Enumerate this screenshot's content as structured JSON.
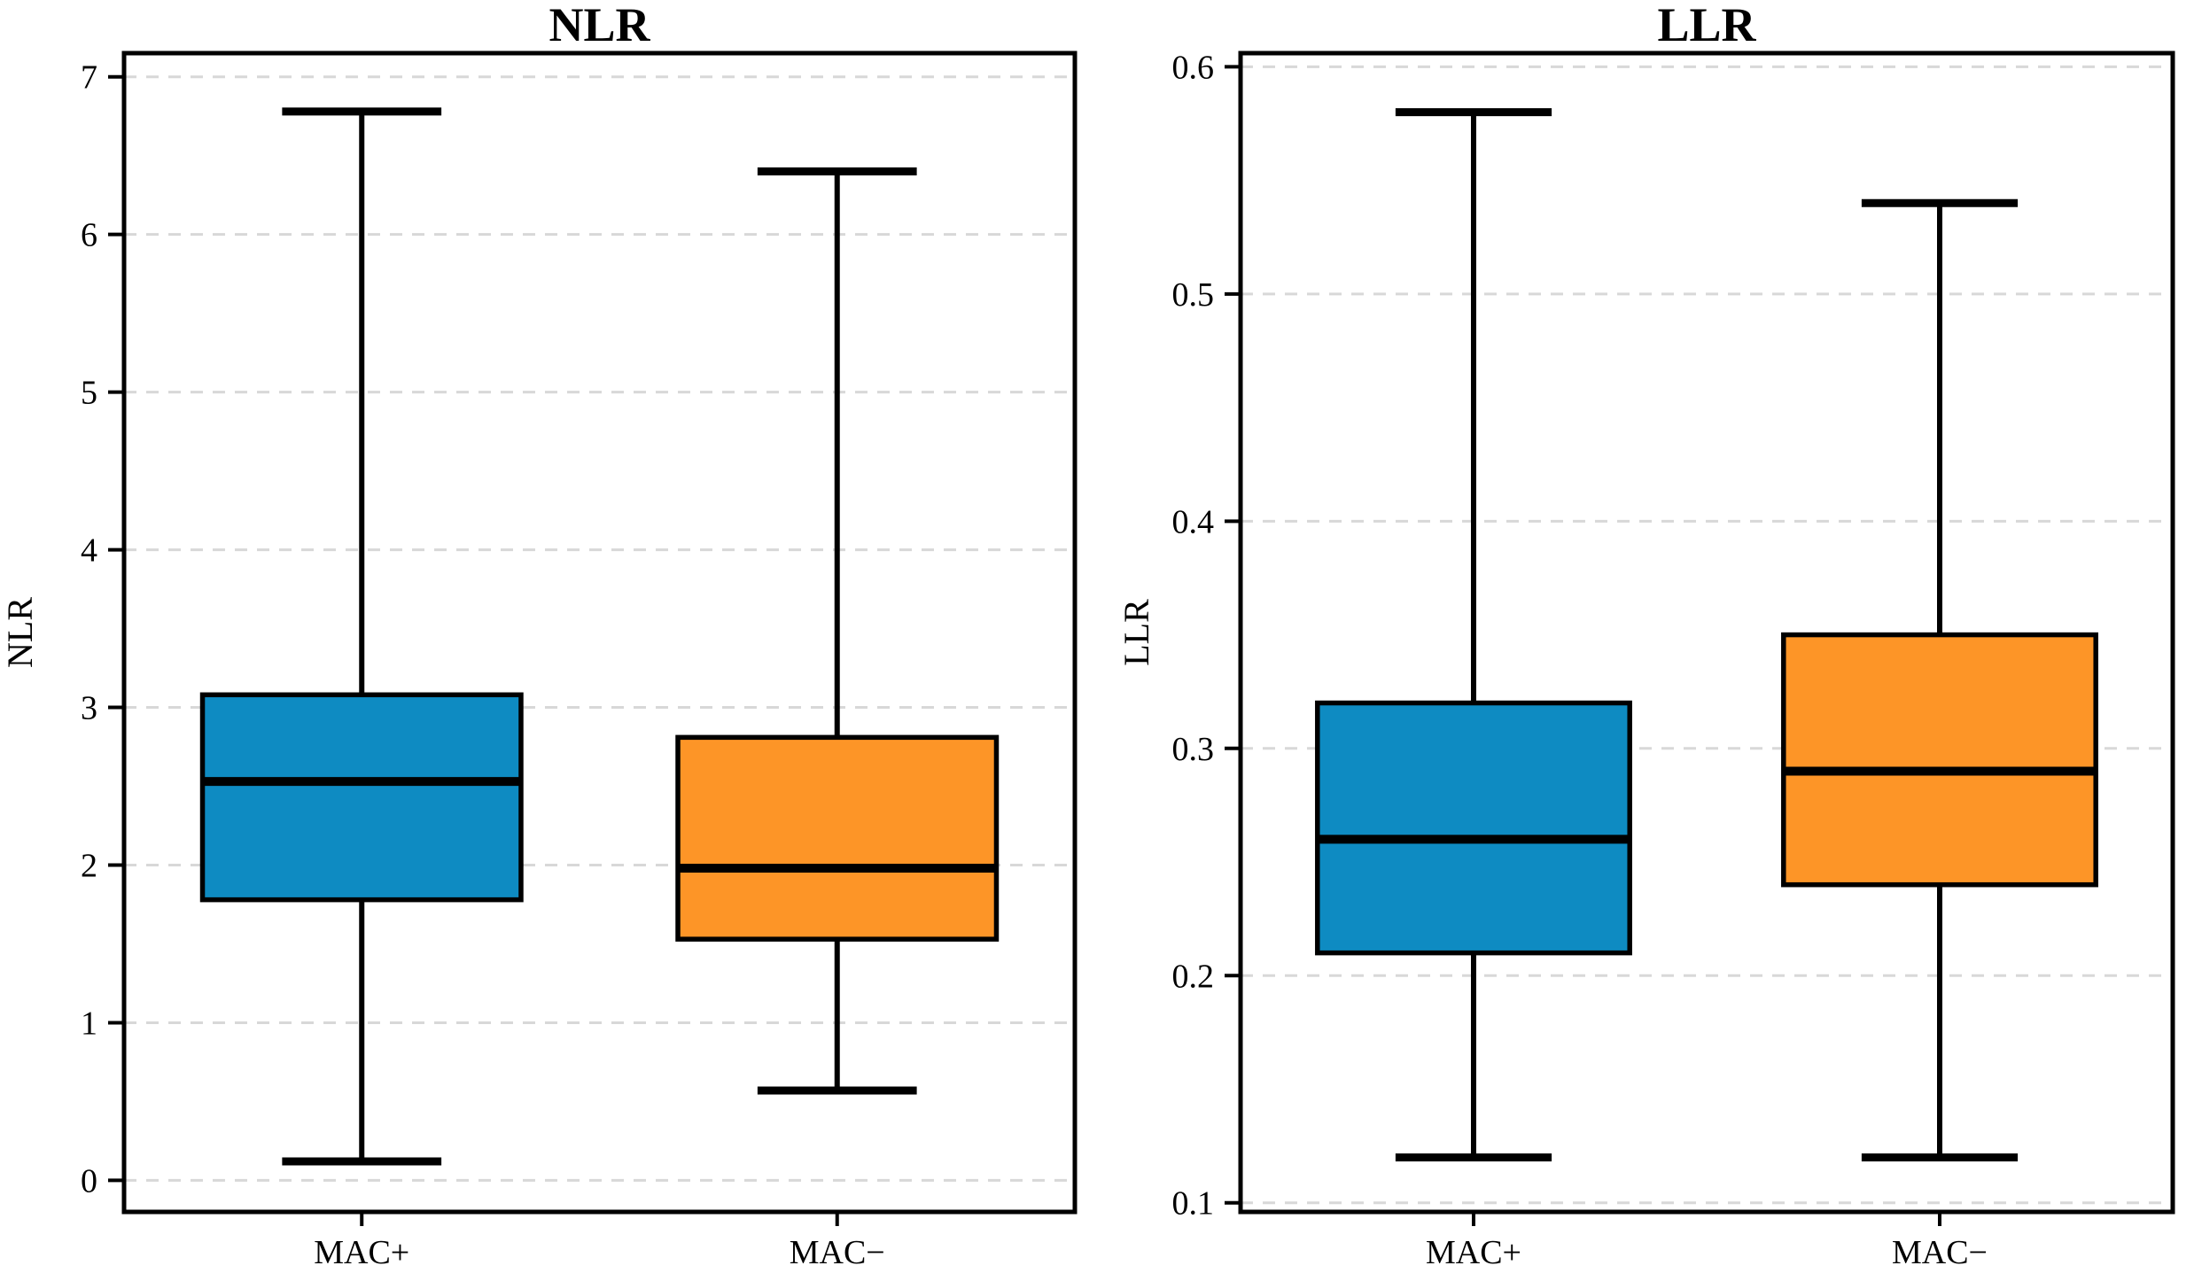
{
  "figure": {
    "background": "#ffffff",
    "kind": "side-by-side box plots"
  },
  "styles": {
    "box_fill_blue": "#0E8BC2",
    "box_fill_orange": "#FD9527",
    "box_edge": "#000000",
    "median_color": "#000000",
    "whisker_color": "#000000",
    "spine_color": "#000000",
    "grid_color": "#D8D8D8",
    "text_color": "#000000"
  },
  "chart_data": [
    {
      "type": "boxplot",
      "title": "NLR",
      "ylabel": "NLR",
      "xlabel": "",
      "categories": [
        "MAC+",
        "MAC−"
      ],
      "category_slugs": [
        "mac-plus",
        "mac-minus"
      ],
      "yticks": [
        0,
        1,
        2,
        3,
        4,
        5,
        6,
        7
      ],
      "ytick_labels": [
        "0",
        "1",
        "2",
        "3",
        "4",
        "5",
        "6",
        "7"
      ],
      "ylim": [
        -0.2,
        7.15
      ],
      "grid": "horizontal-dashed",
      "legend": "none",
      "series": [
        {
          "name": "MAC+",
          "color": "#0E8BC2",
          "low": 0.12,
          "q1": 1.78,
          "median": 2.53,
          "q3": 3.08,
          "high": 6.78
        },
        {
          "name": "MAC−",
          "color": "#FD9527",
          "low": 0.57,
          "q1": 1.53,
          "median": 1.98,
          "q3": 2.81,
          "high": 6.4
        }
      ]
    },
    {
      "type": "boxplot",
      "title": "LLR",
      "ylabel": "LLR",
      "xlabel": "",
      "categories": [
        "MAC+",
        "MAC−"
      ],
      "category_slugs": [
        "mac-plus",
        "mac-minus"
      ],
      "yticks": [
        0.1,
        0.2,
        0.3,
        0.4,
        0.5,
        0.6
      ],
      "ytick_labels": [
        "0.1",
        "0.2",
        "0.3",
        "0.4",
        "0.5",
        "0.6"
      ],
      "ylim": [
        0.096,
        0.606
      ],
      "grid": "horizontal-dashed",
      "legend": "none",
      "series": [
        {
          "name": "MAC+",
          "color": "#0E8BC2",
          "low": 0.12,
          "q1": 0.21,
          "median": 0.26,
          "q3": 0.32,
          "high": 0.58
        },
        {
          "name": "MAC−",
          "color": "#FD9527",
          "low": 0.12,
          "q1": 0.24,
          "median": 0.29,
          "q3": 0.35,
          "high": 0.54
        }
      ]
    }
  ]
}
